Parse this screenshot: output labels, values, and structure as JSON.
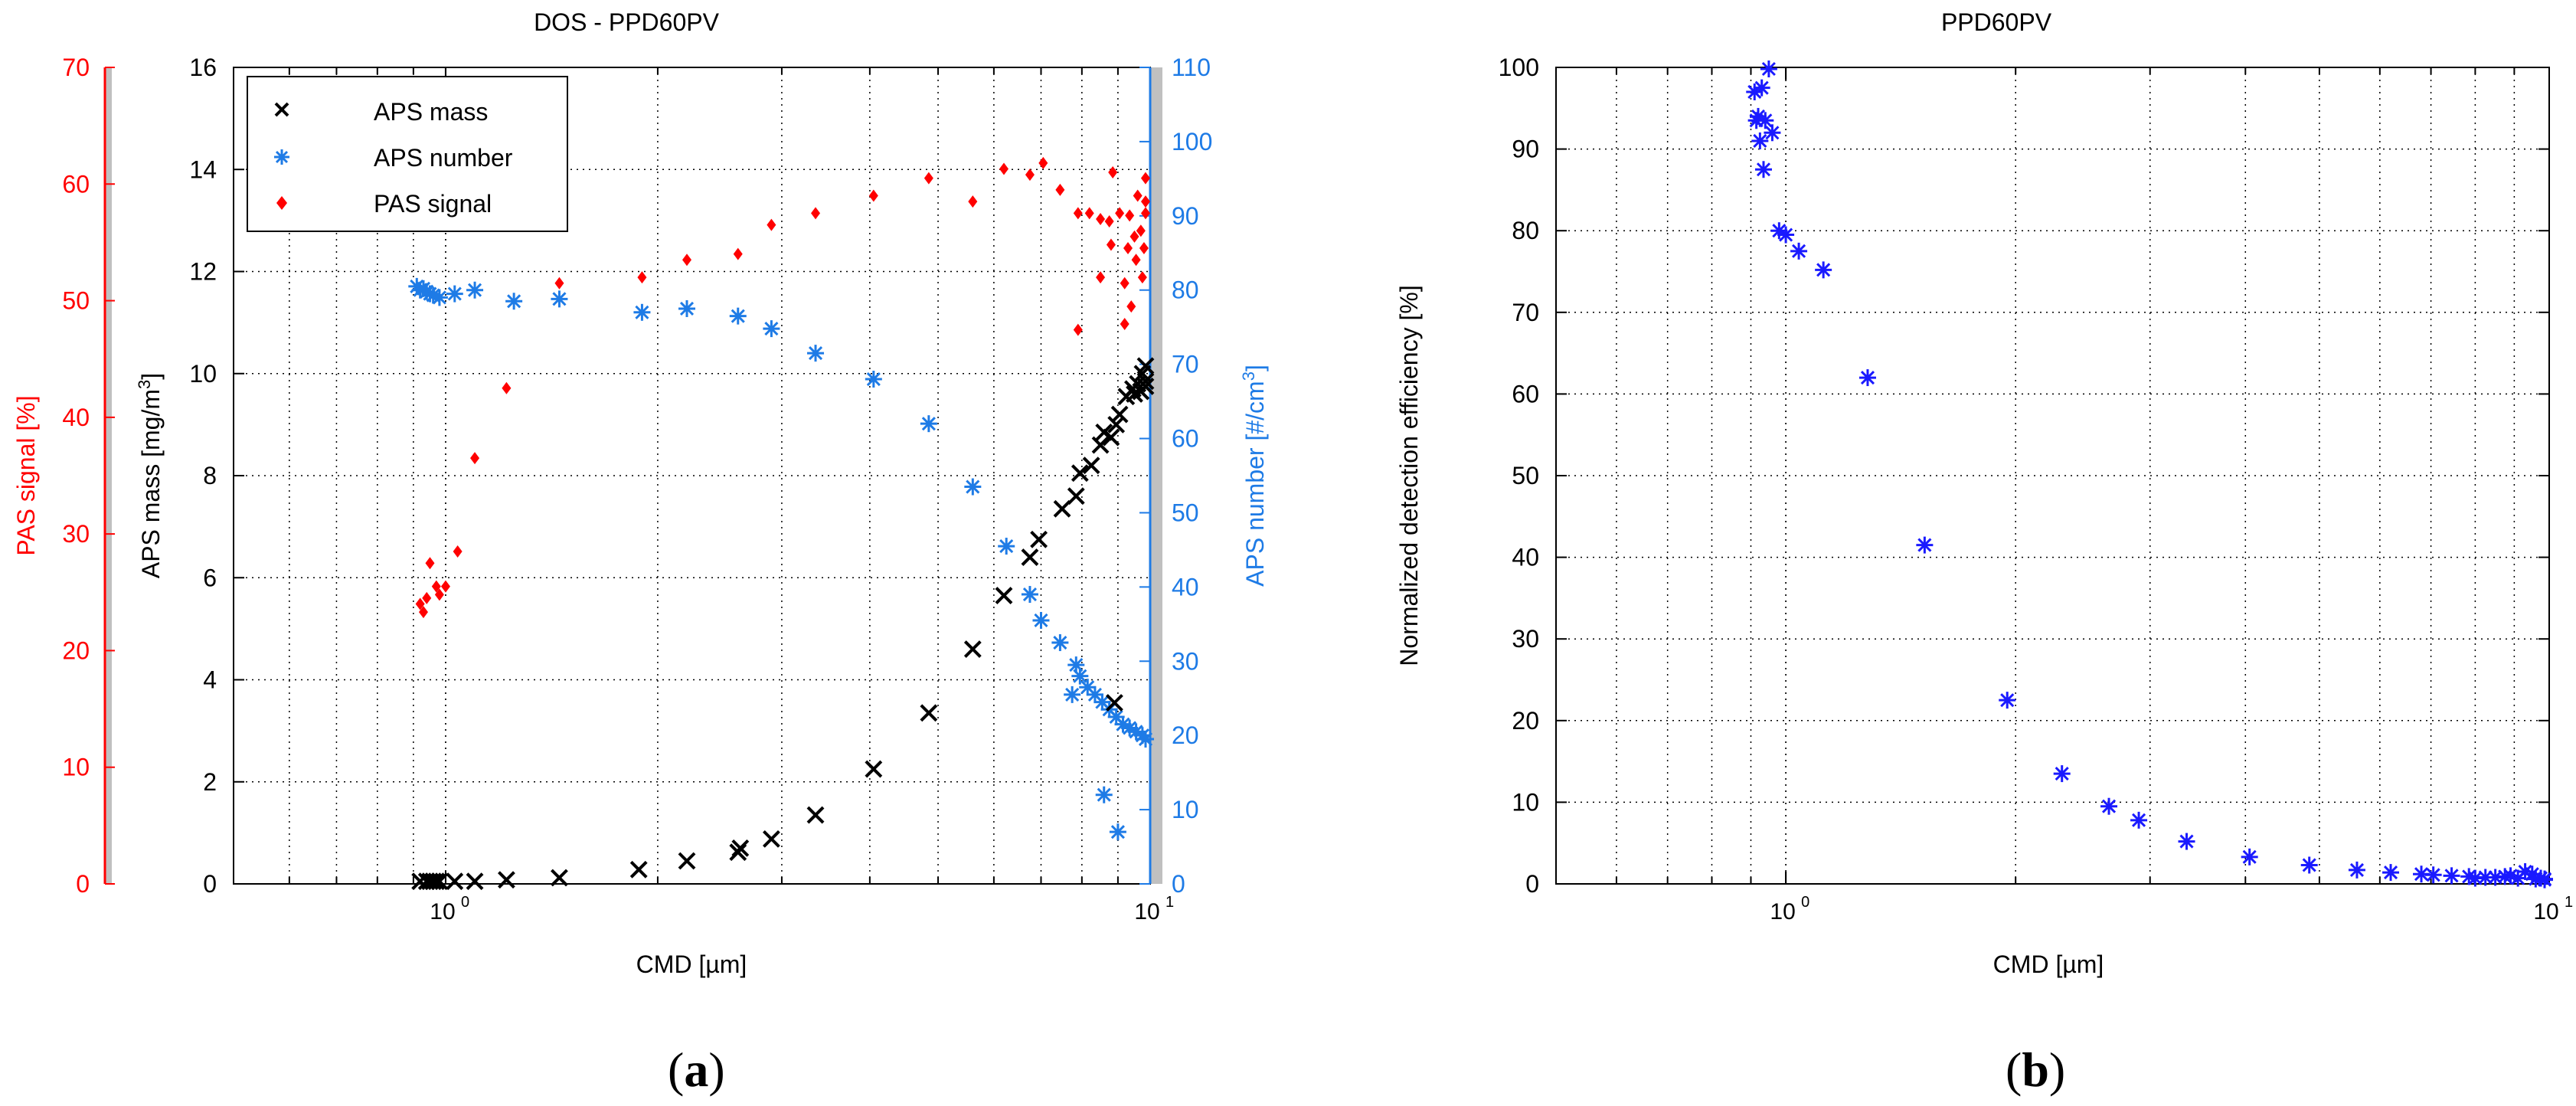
{
  "colors": {
    "black": "#000000",
    "red": "#ff0000",
    "blue_a": "#1e7be6",
    "blue_b": "#1a1aff",
    "grid": "#000000",
    "axis_bar": "#c0c0c0"
  },
  "panels": {
    "a": {
      "open": "(",
      "letter": "a",
      "close": ")"
    },
    "b": {
      "open": "(",
      "letter": "b",
      "close": ")"
    }
  },
  "chart_data": [
    {
      "id": "a",
      "type": "scatter",
      "title": "DOS - PPD60PV",
      "xlabel": "CMD [µm]",
      "x_scale": "log",
      "xlim": [
        0.5,
        10
      ],
      "x_tick_labels": [
        "10",
        "10"
      ],
      "x_tick_exponents": [
        "0",
        "1"
      ],
      "grid": true,
      "legend": {
        "placement": "top-left",
        "entries": [
          "APS mass",
          "APS number",
          "PAS signal"
        ]
      },
      "axes": {
        "left_outer": {
          "label": "PAS signal [%]",
          "ylim": [
            0,
            70
          ],
          "ticks": [
            "0",
            "10",
            "20",
            "30",
            "40",
            "50",
            "60",
            "70"
          ]
        },
        "left_inner": {
          "label": "APS mass [mg/m",
          "label_sup": "3",
          "label_end": "]",
          "ylim": [
            0,
            16
          ],
          "ticks": [
            "0",
            "2",
            "4",
            "6",
            "8",
            "10",
            "12",
            "14",
            "16"
          ]
        },
        "right": {
          "label": "APS number [#/cm",
          "label_sup": "3",
          "label_end": "]",
          "ylim": [
            0,
            110
          ],
          "ticks": [
            "0",
            "10",
            "20",
            "30",
            "40",
            "50",
            "60",
            "70",
            "80",
            "90",
            "100",
            "110"
          ]
        }
      },
      "series": [
        {
          "name": "APS mass",
          "marker": "x",
          "axis": "left_inner",
          "points": [
            [
              0.92,
              0.05
            ],
            [
              0.94,
              0.05
            ],
            [
              0.95,
              0.05
            ],
            [
              0.96,
              0.05
            ],
            [
              0.97,
              0.05
            ],
            [
              0.98,
              0.05
            ],
            [
              1.03,
              0.05
            ],
            [
              1.1,
              0.05
            ],
            [
              1.22,
              0.08
            ],
            [
              1.45,
              0.12
            ],
            [
              1.88,
              0.28
            ],
            [
              2.2,
              0.45
            ],
            [
              2.6,
              0.62
            ],
            [
              2.62,
              0.7
            ],
            [
              2.9,
              0.88
            ],
            [
              3.35,
              1.35
            ],
            [
              4.05,
              2.25
            ],
            [
              4.85,
              3.35
            ],
            [
              5.6,
              4.6
            ],
            [
              6.2,
              5.65
            ],
            [
              6.75,
              6.4
            ],
            [
              6.95,
              6.75
            ],
            [
              7.5,
              7.35
            ],
            [
              7.85,
              7.6
            ],
            [
              7.95,
              8.05
            ],
            [
              8.25,
              8.2
            ],
            [
              8.5,
              8.6
            ],
            [
              8.6,
              8.85
            ],
            [
              8.8,
              8.75
            ],
            [
              8.95,
              9.0
            ],
            [
              9.05,
              9.2
            ],
            [
              9.25,
              9.55
            ],
            [
              9.45,
              9.7
            ],
            [
              9.6,
              9.8
            ],
            [
              9.75,
              10.0
            ],
            [
              9.9,
              10.15
            ],
            [
              9.95,
              9.85
            ],
            [
              9.98,
              9.75
            ],
            [
              9.7,
              9.65
            ],
            [
              9.5,
              9.6
            ],
            [
              8.9,
              3.55
            ]
          ]
        },
        {
          "name": "APS number",
          "marker": "asterisk",
          "axis": "right",
          "points": [
            [
              0.91,
              80.5
            ],
            [
              0.92,
              80.0
            ],
            [
              0.93,
              80.2
            ],
            [
              0.94,
              79.8
            ],
            [
              0.95,
              79.5
            ],
            [
              0.96,
              79.3
            ],
            [
              0.98,
              79.0
            ],
            [
              1.03,
              79.5
            ],
            [
              1.1,
              80.0
            ],
            [
              1.25,
              78.5
            ],
            [
              1.45,
              78.8
            ],
            [
              1.9,
              77.0
            ],
            [
              2.2,
              77.5
            ],
            [
              2.6,
              76.5
            ],
            [
              2.9,
              74.8
            ],
            [
              3.35,
              71.5
            ],
            [
              4.05,
              68.0
            ],
            [
              4.85,
              62.0
            ],
            [
              5.6,
              53.5
            ],
            [
              6.25,
              45.5
            ],
            [
              6.75,
              39.0
            ],
            [
              7.0,
              35.5
            ],
            [
              7.45,
              32.5
            ],
            [
              7.85,
              29.5
            ],
            [
              7.95,
              28.0
            ],
            [
              8.15,
              26.5
            ],
            [
              8.35,
              25.5
            ],
            [
              8.55,
              24.5
            ],
            [
              8.75,
              23.5
            ],
            [
              8.95,
              22.5
            ],
            [
              9.15,
              21.5
            ],
            [
              9.35,
              21.0
            ],
            [
              9.55,
              20.5
            ],
            [
              9.75,
              20.0
            ],
            [
              9.9,
              19.5
            ],
            [
              7.75,
              25.5
            ],
            [
              8.6,
              12.0
            ],
            [
              9.0,
              7.0
            ]
          ]
        },
        {
          "name": "PAS signal",
          "marker": "diamond",
          "axis": "left_outer",
          "points": [
            [
              0.92,
              24.0
            ],
            [
              0.93,
              23.3
            ],
            [
              0.94,
              24.5
            ],
            [
              0.95,
              27.5
            ],
            [
              0.97,
              25.5
            ],
            [
              0.98,
              24.8
            ],
            [
              1.0,
              25.5
            ],
            [
              1.04,
              28.5
            ],
            [
              1.1,
              36.5
            ],
            [
              1.22,
              42.5
            ],
            [
              1.45,
              51.5
            ],
            [
              1.9,
              52.0
            ],
            [
              2.2,
              53.5
            ],
            [
              2.6,
              54.0
            ],
            [
              2.9,
              56.5
            ],
            [
              3.35,
              57.5
            ],
            [
              4.05,
              59.0
            ],
            [
              4.85,
              60.5
            ],
            [
              5.6,
              58.5
            ],
            [
              6.2,
              61.3
            ],
            [
              6.75,
              60.8
            ],
            [
              7.05,
              61.8
            ],
            [
              7.45,
              59.5
            ],
            [
              7.9,
              57.5
            ],
            [
              8.2,
              57.5
            ],
            [
              8.5,
              57.0
            ],
            [
              8.75,
              56.8
            ],
            [
              9.05,
              57.5
            ],
            [
              9.35,
              57.3
            ],
            [
              9.6,
              59.0
            ],
            [
              9.85,
              60.5
            ],
            [
              9.9,
              58.5
            ],
            [
              9.95,
              57.5
            ],
            [
              9.7,
              56.0
            ],
            [
              9.5,
              55.5
            ],
            [
              9.3,
              54.5
            ],
            [
              9.55,
              53.5
            ],
            [
              9.75,
              52.0
            ],
            [
              9.2,
              51.5
            ],
            [
              9.4,
              49.5
            ],
            [
              8.85,
              61.0
            ],
            [
              9.8,
              54.5
            ],
            [
              8.5,
              52.0
            ],
            [
              7.9,
              47.5
            ],
            [
              8.8,
              54.8
            ],
            [
              9.2,
              48.0
            ]
          ]
        }
      ]
    },
    {
      "id": "b",
      "type": "scatter",
      "title": "PPD60PV",
      "xlabel": "CMD [µm]",
      "ylabel": "Normalized detection efficiency [%]",
      "x_scale": "log",
      "xlim": [
        0.5,
        10
      ],
      "ylim": [
        0,
        100
      ],
      "x_tick_labels": [
        "10",
        "10"
      ],
      "x_tick_exponents": [
        "0",
        "1"
      ],
      "y_ticks": [
        "0",
        "10",
        "20",
        "30",
        "40",
        "50",
        "60",
        "70",
        "80",
        "90",
        "100"
      ],
      "grid": true,
      "series": [
        {
          "name": "Normalized detection efficiency",
          "marker": "asterisk",
          "points": [
            [
              0.91,
              97.0
            ],
            [
              0.915,
              93.5
            ],
            [
              0.92,
              94.0
            ],
            [
              0.925,
              91.0
            ],
            [
              0.93,
              97.5
            ],
            [
              0.935,
              87.5
            ],
            [
              0.94,
              93.5
            ],
            [
              0.95,
              100.0
            ],
            [
              0.96,
              92.0
            ],
            [
              0.98,
              80.0
            ],
            [
              1.0,
              79.5
            ],
            [
              1.04,
              77.5
            ],
            [
              1.12,
              75.2
            ],
            [
              1.28,
              62.0
            ],
            [
              1.52,
              41.5
            ],
            [
              1.95,
              22.5
            ],
            [
              2.3,
              13.5
            ],
            [
              2.65,
              9.5
            ],
            [
              2.9,
              7.8
            ],
            [
              3.35,
              5.2
            ],
            [
              4.05,
              3.3
            ],
            [
              4.85,
              2.3
            ],
            [
              5.6,
              1.7
            ],
            [
              6.2,
              1.4
            ],
            [
              6.8,
              1.2
            ],
            [
              7.05,
              1.1
            ],
            [
              7.45,
              1.0
            ],
            [
              7.85,
              0.9
            ],
            [
              8.0,
              0.7
            ],
            [
              8.25,
              0.8
            ],
            [
              8.5,
              0.8
            ],
            [
              8.75,
              0.9
            ],
            [
              8.9,
              1.0
            ],
            [
              9.1,
              0.7
            ],
            [
              9.3,
              1.5
            ],
            [
              9.5,
              1.2
            ],
            [
              9.6,
              0.6
            ],
            [
              9.75,
              0.7
            ],
            [
              9.9,
              0.5
            ],
            [
              9.95,
              0.6
            ]
          ]
        }
      ]
    }
  ]
}
